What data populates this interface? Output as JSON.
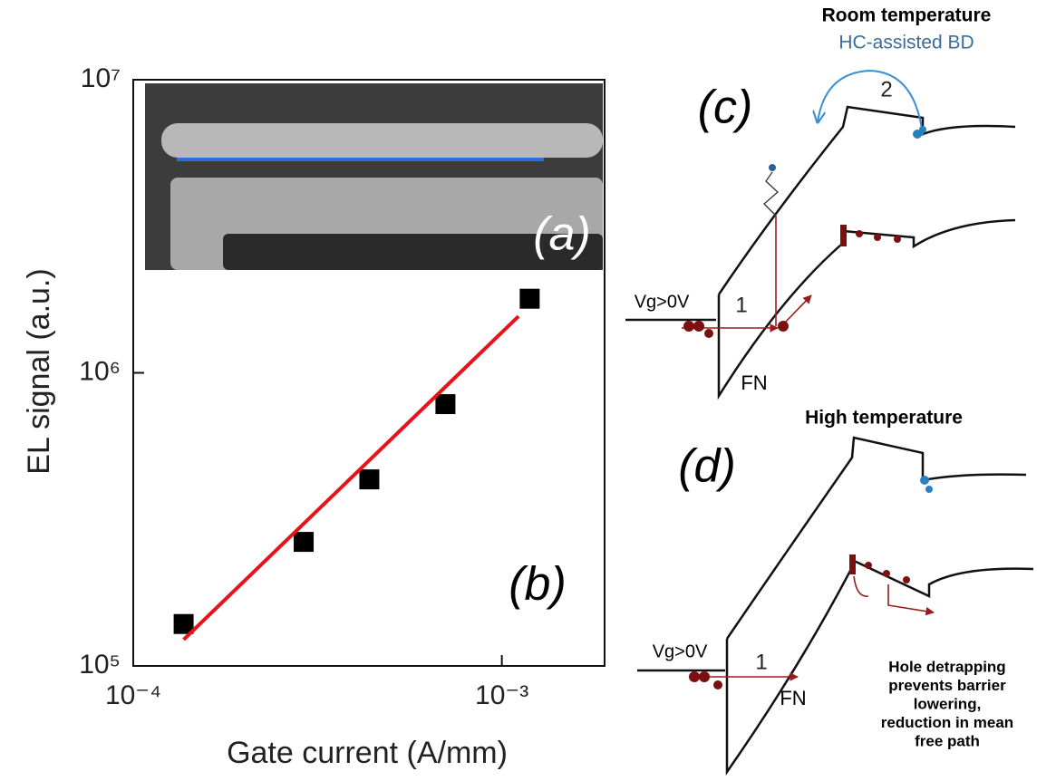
{
  "chart_data": {
    "type": "scatter",
    "xlabel": "Gate current (A/mm)",
    "ylabel": "EL signal (a.u.)",
    "xscale": "log",
    "yscale": "log",
    "xlim": [
      0.0001,
      0.0019
    ],
    "ylim": [
      100000,
      10000000
    ],
    "xticks": [
      {
        "value": 0.0001,
        "label": "10⁻⁴"
      },
      {
        "value": 0.001,
        "label": "10⁻³"
      }
    ],
    "yticks": [
      {
        "value": 100000,
        "label": "10⁵"
      },
      {
        "value": 1000000,
        "label": "10⁶"
      },
      {
        "value": 10000000,
        "label": "10⁷"
      }
    ],
    "series": [
      {
        "type": "scatter",
        "color": "#000000",
        "x": [
          0.000137,
          0.00029,
          0.000437,
          0.000703,
          0.00119
        ],
        "values": [
          139000,
          265000,
          433000,
          782000,
          1790000
        ]
      },
      {
        "type": "line",
        "color": "#e8121a",
        "x": [
          0.000137,
          0.00111
        ],
        "values": [
          123000,
          1560000
        ]
      }
    ]
  },
  "panels": {
    "a": "(a)",
    "b": "(b)",
    "c": "(c)",
    "d": "(d)"
  },
  "diagram_c": {
    "title": "Room temperature",
    "subtitle": "HC-assisted BD",
    "step2": "2",
    "bias": "Vg>0V",
    "step1": "1",
    "fn": "FN"
  },
  "diagram_d": {
    "title": "High temperature",
    "bias": "Vg>0V",
    "step1": "1",
    "fn": "FN",
    "note": [
      "Hole detrapping",
      "prevents barrier",
      "lowering,",
      "reduction in mean",
      "free path"
    ]
  }
}
